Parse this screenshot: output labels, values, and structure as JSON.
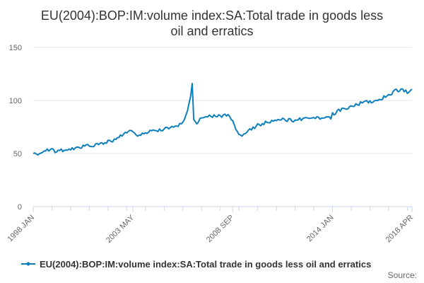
{
  "colors": {
    "series": "#0f7fbc",
    "grid": "#e6e6e6",
    "axis": "#ccd6eb",
    "text": "#333333",
    "muted": "#666666"
  },
  "chart_data": {
    "type": "line",
    "title": "EU(2004):BOP:IM:volume index:SA:Total trade in goods less oil and erratics",
    "title_lines": [
      "EU(2004):BOP:IM:volume index:SA:Total trade in goods less",
      "oil and erratics"
    ],
    "xlabel": "",
    "ylabel": "",
    "ylim": [
      0,
      150
    ],
    "yticks": [
      0,
      50,
      100,
      150
    ],
    "x_range": [
      "1998 JAN",
      "2018 APR"
    ],
    "xticks": [
      "1998 JAN",
      "2003 MAY",
      "2008 SEP",
      "2014 JAN",
      "2018 APR"
    ],
    "grid": true,
    "legend": "bottom",
    "source_label": "Source:",
    "series": [
      {
        "name": "EU(2004):BOP:IM:volume index:SA:Total trade in goods less oil and erratics",
        "points": [
          [
            "1998 JAN",
            49
          ],
          [
            "1998 JUN",
            51
          ],
          [
            "1998 DEC",
            54
          ],
          [
            "1999 MAR",
            52
          ],
          [
            "1999 JUN",
            53
          ],
          [
            "1999 DEC",
            53
          ],
          [
            "2000 JUN",
            56
          ],
          [
            "2000 DEC",
            57
          ],
          [
            "2001 JUN",
            58
          ],
          [
            "2001 DEC",
            61
          ],
          [
            "2002 JUN",
            63
          ],
          [
            "2002 DEC",
            70
          ],
          [
            "2003 MAY",
            71
          ],
          [
            "2003 JUL",
            66
          ],
          [
            "2003 DEC",
            70
          ],
          [
            "2004 JUN",
            71
          ],
          [
            "2004 DEC",
            73
          ],
          [
            "2005 JUN",
            75
          ],
          [
            "2005 DEC",
            78
          ],
          [
            "2006 MAR",
            85
          ],
          [
            "2006 JUN",
            104
          ],
          [
            "2006 JUL",
            116
          ],
          [
            "2006 AUG",
            82
          ],
          [
            "2006 OCT",
            78
          ],
          [
            "2006 DEC",
            82
          ],
          [
            "2007 JUN",
            86
          ],
          [
            "2007 DEC",
            85
          ],
          [
            "2008 JUN",
            87
          ],
          [
            "2008 SEP",
            80
          ],
          [
            "2008 DEC",
            70
          ],
          [
            "2009 MAR",
            67
          ],
          [
            "2009 JUN",
            70
          ],
          [
            "2009 DEC",
            76
          ],
          [
            "2010 JUN",
            79
          ],
          [
            "2010 DEC",
            81
          ],
          [
            "2011 JUN",
            82
          ],
          [
            "2011 DEC",
            81
          ],
          [
            "2012 JUN",
            83
          ],
          [
            "2012 DEC",
            84
          ],
          [
            "2013 JUN",
            83
          ],
          [
            "2013 DEC",
            84
          ],
          [
            "2014 JAN",
            87
          ],
          [
            "2014 JUN",
            91
          ],
          [
            "2014 DEC",
            94
          ],
          [
            "2015 JUN",
            97
          ],
          [
            "2015 DEC",
            99
          ],
          [
            "2016 MAR",
            97
          ],
          [
            "2016 JUN",
            101
          ],
          [
            "2016 DEC",
            104
          ],
          [
            "2017 JUN",
            110
          ],
          [
            "2017 DEC",
            109
          ],
          [
            "2018 JAN",
            107
          ],
          [
            "2018 APR",
            110
          ]
        ]
      }
    ]
  }
}
